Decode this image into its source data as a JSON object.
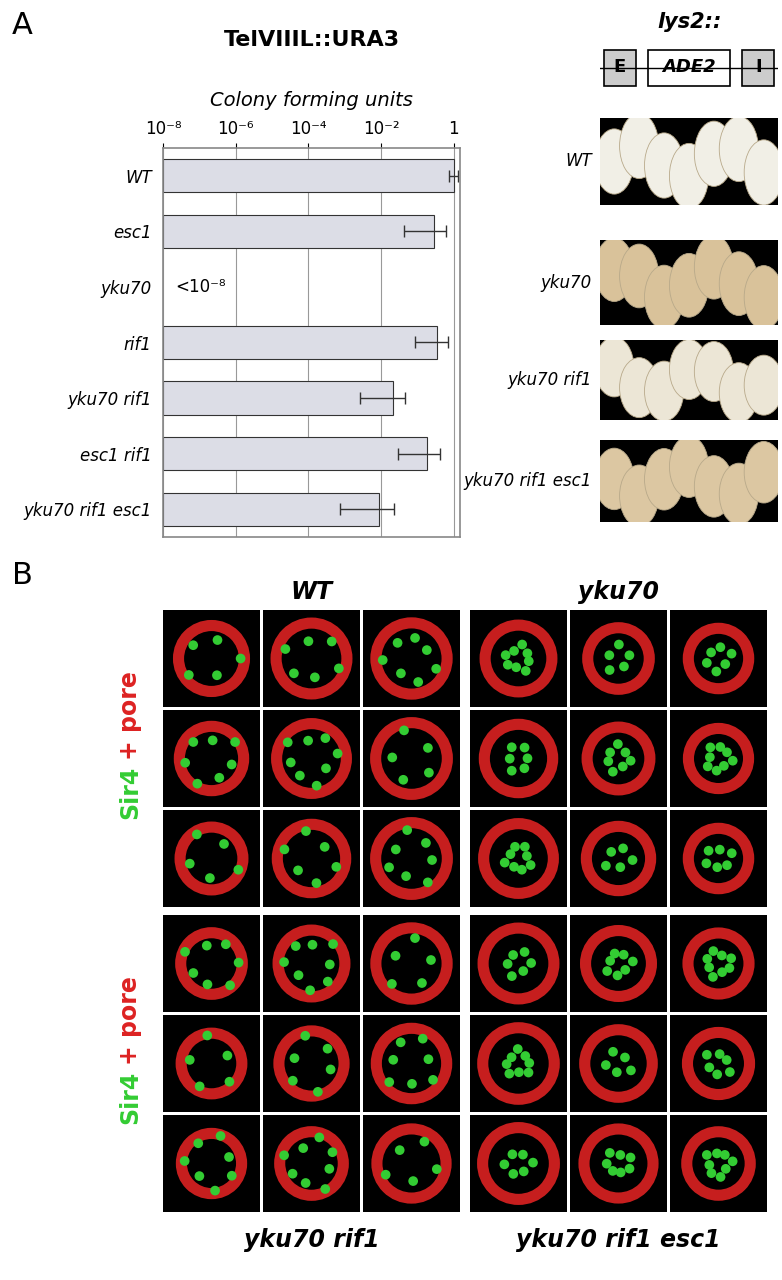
{
  "panel_labels": [
    "A",
    "B"
  ],
  "chart_data": {
    "type": "bar",
    "orientation": "horizontal",
    "title": "TelVIIIL::URA3",
    "x_label": "Colony forming units",
    "categories": [
      "WT",
      "esc1",
      "yku70",
      "rif1",
      "yku70 rif1",
      "esc1 rif1",
      "yku70 rif1 esc1"
    ],
    "values": [
      1.0,
      0.28,
      null,
      0.34,
      0.021,
      0.18,
      0.009
    ],
    "error_bars": [
      [
        0.75,
        1.3
      ],
      [
        0.042,
        0.6
      ],
      null,
      [
        0.084,
        0.68
      ],
      [
        0.0026,
        0.045
      ],
      [
        0.029,
        0.41
      ],
      [
        0.00076,
        0.023
      ]
    ],
    "annotations": [
      {
        "category": "yku70",
        "text": "<10⁻⁸"
      }
    ],
    "log": "x",
    "xlim": [
      1e-08,
      1.5
    ],
    "xticks": [
      {
        "value": 1e-08,
        "label": "10⁻⁸"
      },
      {
        "value": 1e-06,
        "label": "10⁻⁶"
      },
      {
        "value": 0.0001,
        "label": "10⁻⁴"
      },
      {
        "value": 0.01,
        "label": "10⁻²"
      },
      1
    ],
    "grid": true,
    "color": "#dcdde6"
  },
  "colony_panel": {
    "construct": {
      "locus": "lys2::",
      "boxes": [
        "E",
        "ADE2",
        "I"
      ]
    },
    "strains": [
      "WT",
      "yku70",
      "yku70 rif1",
      "yku70 rif1 esc1"
    ]
  },
  "microscopy_panel": {
    "stain_label": [
      "Sir4",
      "+ pore"
    ],
    "stain_colors": [
      "#33cc33",
      "#dd2222"
    ],
    "strains_top": [
      "WT",
      "yku70"
    ],
    "strains_bottom": [
      "yku70 rif1",
      "yku70 rif1 esc1"
    ]
  }
}
